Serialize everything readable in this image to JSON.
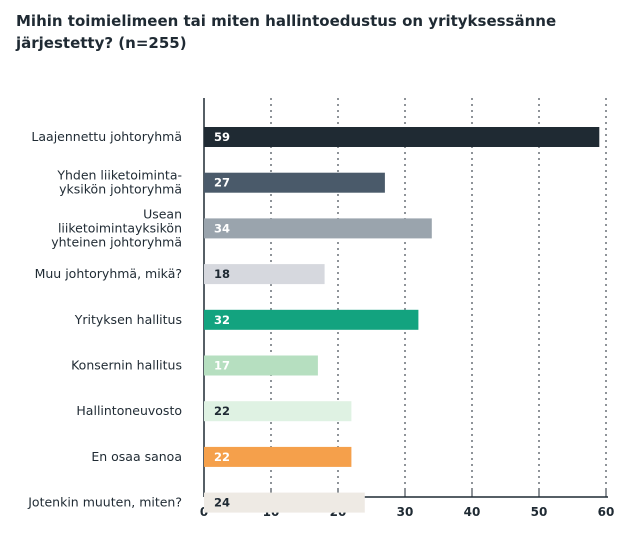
{
  "chart_data": {
    "type": "bar",
    "orientation": "horizontal",
    "title_lines": [
      "Mihin toimielimeen tai miten hallintoedustus on yrityksessänne",
      "järjestetty? (n=255)"
    ],
    "categories": [
      [
        "Laajennettu johtoryhmä"
      ],
      [
        "Yhden liiketoiminta-",
        "yksikön johtoryhmä"
      ],
      [
        "Usean",
        "liiketoimintayksikön",
        "yhteinen johtoryhmä"
      ],
      [
        "Muu johtoryhmä, mikä?"
      ],
      [
        "Yrityksen hallitus"
      ],
      [
        "Konsernin hallitus"
      ],
      [
        "Hallintoneuvosto"
      ],
      [
        "En osaa sanoa"
      ],
      [
        "Jotenkin muuten, miten?"
      ]
    ],
    "values": [
      59,
      27,
      34,
      18,
      32,
      17,
      22,
      22,
      24
    ],
    "colors": [
      "#1f2a33",
      "#4a5a6a",
      "#9aa4ad",
      "#d6d8de",
      "#13a37f",
      "#b6dfc0",
      "#dff2e3",
      "#f5a04b",
      "#eeeae4"
    ],
    "label_colors": [
      "#ffffff",
      "#ffffff",
      "#ffffff",
      "#1f2a33",
      "#ffffff",
      "#ffffff",
      "#1f2a33",
      "#ffffff",
      "#1f2a33"
    ],
    "xlim": [
      0,
      60
    ],
    "xticks": [
      0,
      10,
      20,
      30,
      40,
      50,
      60
    ],
    "grid": true,
    "xlabel": "",
    "ylabel": ""
  }
}
